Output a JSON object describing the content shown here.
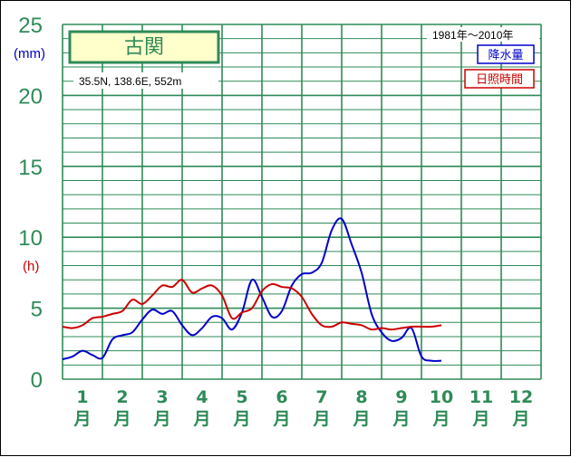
{
  "chart_data": {
    "type": "line",
    "station": "古関",
    "location": "35.5N,  138.6E,  552m",
    "period": "1981年〜2010年",
    "unit_mm": "(mm)",
    "unit_h": "(h)",
    "y_ticks": [
      "0",
      "5",
      "10",
      "15",
      "20",
      "25"
    ],
    "ylim": [
      0,
      25
    ],
    "grid": true,
    "month_numbers": [
      "1",
      "2",
      "3",
      "4",
      "5",
      "6",
      "7",
      "8",
      "9",
      "10",
      "11",
      "12"
    ],
    "month_char": "月",
    "x_range": [
      0.5,
      12.5
    ],
    "series": [
      {
        "name": "降水量",
        "color": "#0000cc",
        "points": [
          [
            0.5,
            1.4
          ],
          [
            0.75,
            1.6
          ],
          [
            1.0,
            2.0
          ],
          [
            1.25,
            1.7
          ],
          [
            1.5,
            1.5
          ],
          [
            1.75,
            2.8
          ],
          [
            2.0,
            3.1
          ],
          [
            2.25,
            3.3
          ],
          [
            2.5,
            4.2
          ],
          [
            2.75,
            4.9
          ],
          [
            3.0,
            4.6
          ],
          [
            3.25,
            4.8
          ],
          [
            3.5,
            3.8
          ],
          [
            3.75,
            3.1
          ],
          [
            4.0,
            3.6
          ],
          [
            4.25,
            4.4
          ],
          [
            4.5,
            4.3
          ],
          [
            4.75,
            3.5
          ],
          [
            5.0,
            4.7
          ],
          [
            5.25,
            7.0
          ],
          [
            5.5,
            5.8
          ],
          [
            5.75,
            4.4
          ],
          [
            6.0,
            4.8
          ],
          [
            6.25,
            6.6
          ],
          [
            6.5,
            7.4
          ],
          [
            6.75,
            7.5
          ],
          [
            7.0,
            8.2
          ],
          [
            7.25,
            10.5
          ],
          [
            7.5,
            11.3
          ],
          [
            7.75,
            9.5
          ],
          [
            8.0,
            7.5
          ],
          [
            8.25,
            4.6
          ],
          [
            8.5,
            3.3
          ],
          [
            8.75,
            2.7
          ],
          [
            9.0,
            2.9
          ],
          [
            9.25,
            3.6
          ],
          [
            9.5,
            1.6
          ],
          [
            9.75,
            1.3
          ],
          [
            10.0,
            1.3
          ]
        ]
      },
      {
        "name": "日照時間",
        "color": "#cc0000",
        "points": [
          [
            0.5,
            3.7
          ],
          [
            0.75,
            3.6
          ],
          [
            1.0,
            3.8
          ],
          [
            1.25,
            4.3
          ],
          [
            1.5,
            4.4
          ],
          [
            1.75,
            4.6
          ],
          [
            2.0,
            4.8
          ],
          [
            2.25,
            5.6
          ],
          [
            2.5,
            5.3
          ],
          [
            2.75,
            5.9
          ],
          [
            3.0,
            6.6
          ],
          [
            3.25,
            6.5
          ],
          [
            3.5,
            7.0
          ],
          [
            3.75,
            6.1
          ],
          [
            4.0,
            6.4
          ],
          [
            4.25,
            6.6
          ],
          [
            4.5,
            5.9
          ],
          [
            4.75,
            4.3
          ],
          [
            5.0,
            4.7
          ],
          [
            5.25,
            5.0
          ],
          [
            5.5,
            6.2
          ],
          [
            5.75,
            6.7
          ],
          [
            6.0,
            6.5
          ],
          [
            6.25,
            6.4
          ],
          [
            6.5,
            5.8
          ],
          [
            6.75,
            4.6
          ],
          [
            7.0,
            3.8
          ],
          [
            7.25,
            3.7
          ],
          [
            7.5,
            4.0
          ],
          [
            7.75,
            3.9
          ],
          [
            8.0,
            3.8
          ],
          [
            8.25,
            3.5
          ],
          [
            8.5,
            3.6
          ],
          [
            8.75,
            3.5
          ],
          [
            9.0,
            3.6
          ],
          [
            9.25,
            3.7
          ],
          [
            9.5,
            3.7
          ],
          [
            9.75,
            3.7
          ],
          [
            10.0,
            3.8
          ]
        ]
      }
    ]
  },
  "colors": {
    "grid": "#2e8b57",
    "station_box_fill": "#ffffcc",
    "station_box_border": "#2e8b57",
    "label_green": "#2e8b57"
  }
}
